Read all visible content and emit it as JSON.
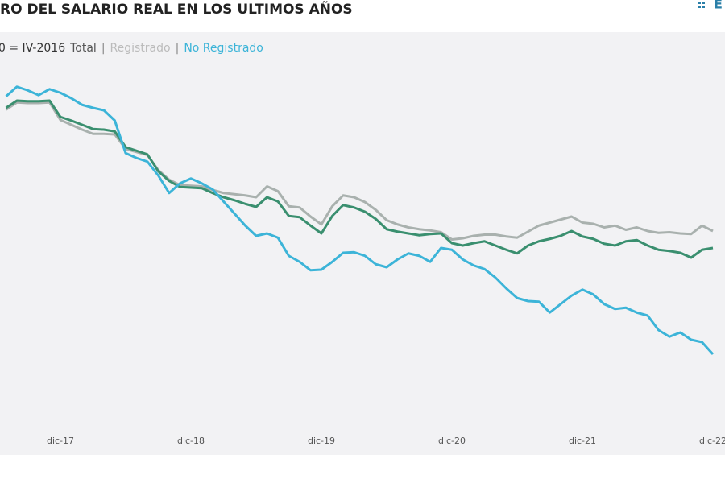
{
  "chart_data": {
    "type": "line",
    "title": "RO DEL SALARIO REAL EN LOS ULTIMOS AÑOS",
    "subtitle": "0 = IV-2016",
    "legend_separator": "|",
    "logo": "E",
    "categories": [
      null,
      null,
      null,
      null,
      null,
      "dic-17",
      null,
      null,
      null,
      null,
      null,
      null,
      null,
      null,
      null,
      null,
      null,
      "dic-18",
      null,
      null,
      null,
      null,
      null,
      null,
      null,
      null,
      null,
      null,
      null,
      "dic-19",
      null,
      null,
      null,
      null,
      null,
      null,
      null,
      null,
      null,
      null,
      null,
      "dic-20",
      null,
      null,
      null,
      null,
      null,
      null,
      null,
      null,
      null,
      null,
      null,
      "dic-21",
      null,
      null,
      null,
      null,
      null,
      null,
      null,
      null,
      null,
      null,
      null,
      "dic-22"
    ],
    "ylim": [
      50,
      106
    ],
    "grid": false,
    "series": [
      {
        "name": "Total",
        "color": "#3a8f6f",
        "legend_color": "#555555",
        "values": [
          100.8,
          102.0,
          101.9,
          101.9,
          102.0,
          99.3,
          98.7,
          98.0,
          97.3,
          97.2,
          96.9,
          94.3,
          93.7,
          93.1,
          90.3,
          88.7,
          87.7,
          87.6,
          87.5,
          86.7,
          86.0,
          85.5,
          84.9,
          84.4,
          86.0,
          85.3,
          82.9,
          82.7,
          81.3,
          80.0,
          82.9,
          84.7,
          84.3,
          83.6,
          82.4,
          80.7,
          80.3,
          80.0,
          79.7,
          79.9,
          80.0,
          78.4,
          78.0,
          78.4,
          78.7,
          78.0,
          77.3,
          76.7,
          78.0,
          78.7,
          79.1,
          79.6,
          80.4,
          79.5,
          79.1,
          78.3,
          78.0,
          78.7,
          78.9,
          78.0,
          77.3,
          77.1,
          76.8,
          76.0,
          77.3,
          77.6
        ]
      },
      {
        "name": "Registrado",
        "color": "#a9b1ae",
        "legend_color": "#bbbbbb",
        "values": [
          100.5,
          101.7,
          101.6,
          101.6,
          101.7,
          98.8,
          98.0,
          97.2,
          96.5,
          96.5,
          96.4,
          94.0,
          93.5,
          93.0,
          90.5,
          88.9,
          88.0,
          87.9,
          87.8,
          87.2,
          86.7,
          86.5,
          86.3,
          86.0,
          87.8,
          87.0,
          84.5,
          84.3,
          82.8,
          81.5,
          84.5,
          86.3,
          86.0,
          85.2,
          83.9,
          82.2,
          81.5,
          81.0,
          80.7,
          80.5,
          80.2,
          79.0,
          79.2,
          79.6,
          79.8,
          79.8,
          79.5,
          79.3,
          80.3,
          81.3,
          81.8,
          82.3,
          82.8,
          81.8,
          81.6,
          81.0,
          81.3,
          80.6,
          81.0,
          80.4,
          80.1,
          80.2,
          80.0,
          79.9,
          81.3,
          80.4
        ]
      },
      {
        "name": "No Registrado",
        "color": "#3cb4d8",
        "legend_color": "#3cb4d8",
        "values": [
          102.7,
          104.3,
          103.7,
          102.9,
          103.9,
          103.3,
          102.4,
          101.3,
          100.8,
          100.4,
          98.7,
          93.3,
          92.5,
          91.9,
          89.6,
          86.7,
          88.3,
          89.1,
          88.3,
          87.3,
          85.3,
          83.3,
          81.3,
          79.6,
          80.0,
          79.3,
          76.3,
          75.3,
          73.9,
          74.0,
          75.3,
          76.8,
          76.9,
          76.3,
          74.9,
          74.4,
          75.7,
          76.7,
          76.3,
          75.3,
          77.6,
          77.3,
          75.7,
          74.7,
          74.1,
          72.7,
          70.9,
          69.3,
          68.8,
          68.7,
          66.9,
          68.3,
          69.7,
          70.7,
          69.9,
          68.3,
          67.5,
          67.7,
          66.9,
          66.4,
          64.0,
          62.9,
          63.6,
          62.4,
          62.0,
          60.0
        ]
      }
    ]
  }
}
